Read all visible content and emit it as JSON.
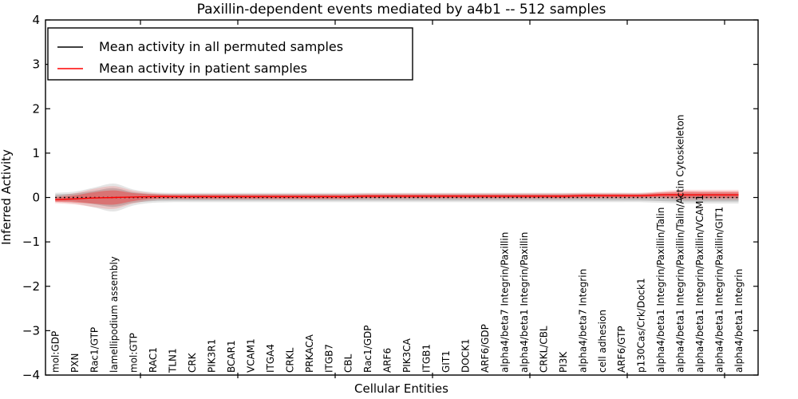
{
  "title": "Paxillin-dependent events mediated by a4b1 -- 512 samples",
  "axes": {
    "x_label": "Cellular Entities",
    "y_label": "Inferred Activity"
  },
  "legend": {
    "items": [
      {
        "label": "Mean activity in all permuted samples",
        "color": "#000000",
        "style": "solid"
      },
      {
        "label": "Mean activity in patient samples",
        "color": "#ff0000",
        "style": "solid"
      }
    ]
  },
  "colors": {
    "frame": "#000000",
    "permuted_line": "#000000",
    "patient_line": "#ff0000",
    "permuted_band": "#000000",
    "patient_band": "#ff0000",
    "background": "#ffffff"
  },
  "chart_data": {
    "type": "line",
    "title": "Paxillin-dependent events mediated by a4b1 -- 512 samples",
    "xlabel": "Cellular Entities",
    "ylabel": "Inferred Activity",
    "ylim": [
      -4,
      4
    ],
    "yticks": [
      -4,
      -3,
      -2,
      -1,
      0,
      1,
      2,
      3,
      4
    ],
    "ytick_labels": [
      "−4",
      "−3",
      "−2",
      "−1",
      "0",
      "1",
      "2",
      "3",
      "4"
    ],
    "grid": false,
    "legend_position": "upper left",
    "categories": [
      "mol:GDP",
      "PXN",
      "Rac1/GTP",
      "lamellipodium assembly",
      "mol:GTP",
      "RAC1",
      "TLN1",
      "CRK",
      "PIK3R1",
      "BCAR1",
      "VCAM1",
      "ITGA4",
      "CRKL",
      "PRKACA",
      "ITGB7",
      "CBL",
      "Rac1/GDP",
      "ARF6",
      "PIK3CA",
      "ITGB1",
      "GIT1",
      "DOCK1",
      "ARF6/GDP",
      "alpha4/beta7 Integrin/Paxillin",
      "alpha4/beta1 Integrin/Paxillin",
      "CRKL/CBL",
      "PI3K",
      "alpha4/beta7 Integrin",
      "cell adhesion",
      "ARF6/GTP",
      "p130Cas/Crk/Dock1",
      "alpha4/beta1 Integrin/Paxillin/Talin",
      "alpha4/beta1 Integrin/Paxillin/Talin/Actin Cytoskeleton",
      "alpha4/beta1 Integrin/Paxillin/VCAM1",
      "alpha4/beta1 Integrin/Paxillin/GIT1",
      "alpha4/beta1 Integrin"
    ],
    "series": [
      {
        "name": "Mean activity in all permuted samples",
        "color": "#000000",
        "line_style": "dotted",
        "values": [
          0,
          0,
          0,
          0,
          0,
          0,
          0,
          0,
          0,
          0,
          0,
          0,
          0,
          0,
          0,
          0,
          0,
          0,
          0,
          0,
          0,
          0,
          0,
          0,
          0,
          0,
          0,
          0,
          0,
          0,
          0,
          0,
          0,
          0,
          0,
          0
        ],
        "band_std": [
          0.07,
          0.09,
          0.15,
          0.21,
          0.12,
          0.08,
          0.07,
          0.07,
          0.07,
          0.07,
          0.07,
          0.07,
          0.07,
          0.07,
          0.07,
          0.07,
          0.07,
          0.07,
          0.07,
          0.07,
          0.07,
          0.07,
          0.07,
          0.07,
          0.07,
          0.07,
          0.07,
          0.07,
          0.07,
          0.07,
          0.07,
          0.08,
          0.09,
          0.09,
          0.09,
          0.09
        ]
      },
      {
        "name": "Mean activity in patient samples",
        "color": "#ff0000",
        "line_style": "solid",
        "values": [
          -0.05,
          -0.03,
          -0.01,
          0.0,
          0.01,
          0.02,
          0.02,
          0.02,
          0.02,
          0.02,
          0.02,
          0.02,
          0.02,
          0.02,
          0.02,
          0.02,
          0.03,
          0.03,
          0.03,
          0.03,
          0.03,
          0.03,
          0.03,
          0.03,
          0.03,
          0.03,
          0.03,
          0.04,
          0.04,
          0.04,
          0.04,
          0.06,
          0.06,
          0.06,
          0.06,
          0.06
        ],
        "band_std": [
          0.05,
          0.08,
          0.13,
          0.16,
          0.09,
          0.05,
          0.04,
          0.04,
          0.04,
          0.04,
          0.04,
          0.04,
          0.04,
          0.04,
          0.04,
          0.04,
          0.04,
          0.04,
          0.04,
          0.04,
          0.04,
          0.04,
          0.04,
          0.04,
          0.04,
          0.04,
          0.04,
          0.04,
          0.04,
          0.04,
          0.04,
          0.05,
          0.07,
          0.07,
          0.07,
          0.07
        ]
      }
    ]
  }
}
